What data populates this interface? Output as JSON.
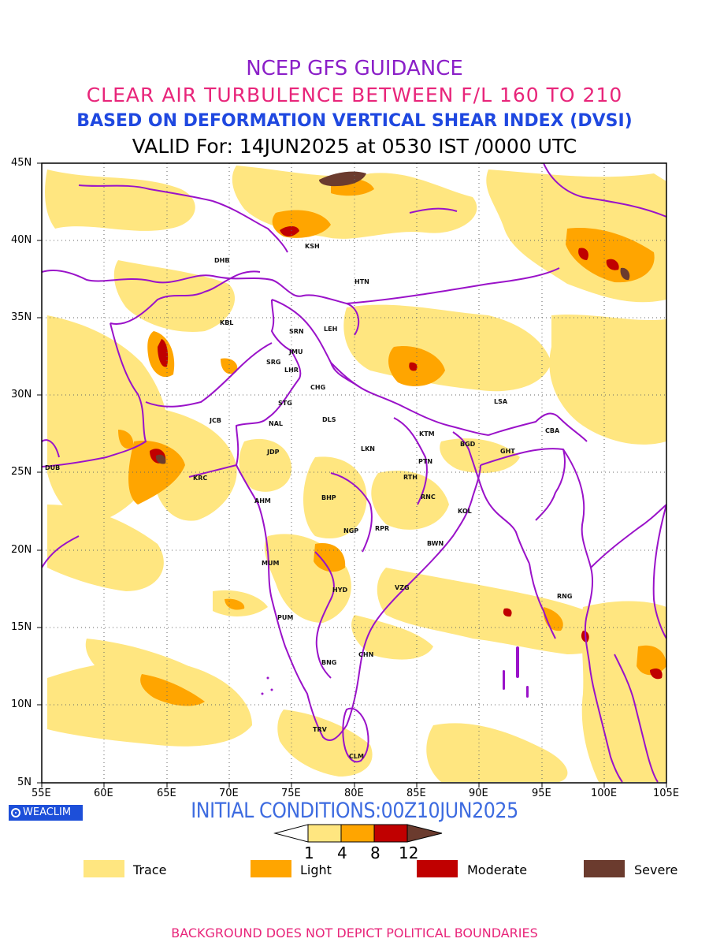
{
  "titles": {
    "line1": "NCEP GFS GUIDANCE",
    "line2": "CLEAR AIR TURBULENCE BETWEEN F/L 160 TO 210",
    "line3": "BASED ON DEFORMATION VERTICAL SHEAR INDEX (DVSI)",
    "line4": "VALID For: 14JUN2025 at 0530 IST /0000 UTC"
  },
  "axes": {
    "lat_labels": [
      "45N",
      "40N",
      "35N",
      "30N",
      "25N",
      "20N",
      "15N",
      "10N",
      "5N"
    ],
    "lon_labels": [
      "55E",
      "60E",
      "65E",
      "70E",
      "75E",
      "80E",
      "85E",
      "90E",
      "95E",
      "100E",
      "105E"
    ]
  },
  "cities": [
    {
      "code": "KSH"
    },
    {
      "code": "DHB"
    },
    {
      "code": "HTN"
    },
    {
      "code": "KBL"
    },
    {
      "code": "SRN"
    },
    {
      "code": "LEH"
    },
    {
      "code": "JMU"
    },
    {
      "code": "SRG"
    },
    {
      "code": "LHR"
    },
    {
      "code": "CHG"
    },
    {
      "code": "STG"
    },
    {
      "code": "LSA"
    },
    {
      "code": "JCB"
    },
    {
      "code": "NAL"
    },
    {
      "code": "DLS"
    },
    {
      "code": "KTM"
    },
    {
      "code": "CBA"
    },
    {
      "code": "BGD"
    },
    {
      "code": "GHT"
    },
    {
      "code": "JDP"
    },
    {
      "code": "LKN"
    },
    {
      "code": "PTN"
    },
    {
      "code": "DUB"
    },
    {
      "code": "KRC"
    },
    {
      "code": "RTH"
    },
    {
      "code": "BHP"
    },
    {
      "code": "AHM"
    },
    {
      "code": "RNC"
    },
    {
      "code": "KOL"
    },
    {
      "code": "NGP"
    },
    {
      "code": "RPR"
    },
    {
      "code": "BWN"
    },
    {
      "code": "MUM"
    },
    {
      "code": "HYD"
    },
    {
      "code": "VZG"
    },
    {
      "code": "RNG"
    },
    {
      "code": "PUM"
    },
    {
      "code": "CHN"
    },
    {
      "code": "BNG"
    },
    {
      "code": "TRV"
    },
    {
      "code": "CLM"
    }
  ],
  "logo": {
    "text": "WEACLIM",
    "icon": "circle-logo-icon"
  },
  "initial_conditions": "INITIAL CONDITIONS:00Z10JUN2025",
  "colorbar": {
    "labels": [
      "1",
      "4",
      "8",
      "12"
    ],
    "colors": [
      "#ffffff",
      "#ffe680",
      "#ffa500",
      "#c00000",
      "#6b3b2e"
    ]
  },
  "legend": [
    {
      "label": "Trace",
      "color": "#ffe680"
    },
    {
      "label": "Light",
      "color": "#ffa500"
    },
    {
      "label": "Moderate",
      "color": "#c00000"
    },
    {
      "label": "Severe",
      "color": "#6b3b2e"
    }
  ],
  "footer": "BACKGROUND DOES NOT DEPICT POLITICAL BOUNDARIES"
}
